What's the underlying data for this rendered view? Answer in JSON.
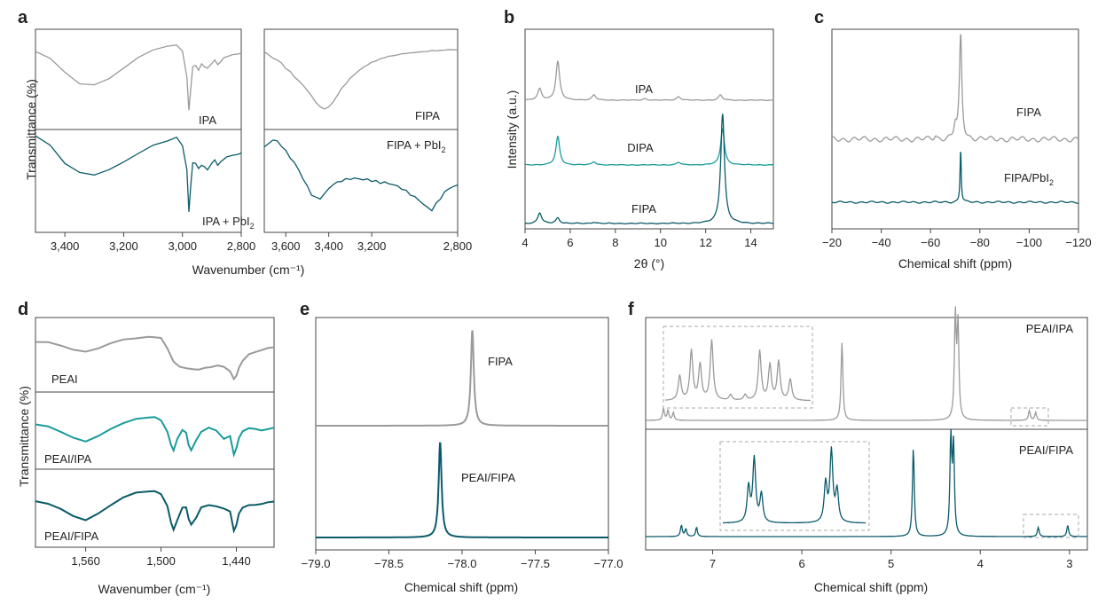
{
  "colors": {
    "gray": "#9a9a9a",
    "teal_light": "#1a9b9b",
    "teal_dark": "#0b5a6a",
    "axis": "#555555",
    "frame": "#444444"
  },
  "panel_labels": [
    "a",
    "b",
    "c",
    "d",
    "e",
    "f"
  ],
  "chart_data": [
    {
      "panel": "a",
      "type": "line",
      "xlabel": "Wavenumber (cm⁻¹)",
      "ylabel": "Transmittance (%)",
      "subplots": [
        {
          "x_ticks": [
            "3,400",
            "3,200",
            "3,000",
            "2,800"
          ],
          "xlim": [
            3500,
            2800
          ],
          "series": [
            {
              "name": "IPA",
              "color": "gray",
              "x": [
                3500,
                3450,
                3400,
                3350,
                3300,
                3250,
                3200,
                3150,
                3100,
                3050,
                3020,
                3000,
                2985,
                2978,
                2972,
                2965,
                2955,
                2945,
                2935,
                2925,
                2915,
                2900,
                2890,
                2880,
                2870,
                2860,
                2850,
                2830,
                2810,
                2800
              ],
              "y": [
                0.8,
                0.72,
                0.55,
                0.42,
                0.4,
                0.48,
                0.6,
                0.73,
                0.82,
                0.86,
                0.88,
                0.8,
                0.5,
                0.1,
                0.35,
                0.62,
                0.63,
                0.58,
                0.65,
                0.62,
                0.6,
                0.66,
                0.7,
                0.64,
                0.68,
                0.72,
                0.74,
                0.76,
                0.77,
                0.78
              ]
            },
            {
              "name": "IPA + PbI₂",
              "color": "teal_dark",
              "x": [
                3500,
                3450,
                3400,
                3350,
                3300,
                3250,
                3200,
                3150,
                3100,
                3050,
                3020,
                3000,
                2985,
                2978,
                2972,
                2965,
                2955,
                2945,
                2935,
                2925,
                2915,
                2900,
                2890,
                2880,
                2870,
                2860,
                2850,
                2830,
                2810,
                2800
              ],
              "y": [
                0.9,
                0.8,
                0.62,
                0.52,
                0.5,
                0.55,
                0.63,
                0.72,
                0.8,
                0.85,
                0.88,
                0.8,
                0.55,
                0.12,
                0.38,
                0.62,
                0.62,
                0.56,
                0.6,
                0.58,
                0.55,
                0.62,
                0.65,
                0.6,
                0.63,
                0.66,
                0.68,
                0.7,
                0.71,
                0.72
              ]
            }
          ]
        },
        {
          "x_ticks": [
            "3,600",
            "3,400",
            "3,200",
            "2,800"
          ],
          "xlim": [
            3700,
            2800
          ],
          "series": [
            {
              "name": "FIPA",
              "color": "gray",
              "x": [
                3700,
                3680,
                3660,
                3640,
                3620,
                3600,
                3580,
                3560,
                3540,
                3520,
                3500,
                3480,
                3460,
                3440,
                3420,
                3400,
                3380,
                3360,
                3340,
                3320,
                3300,
                3280,
                3260,
                3240,
                3220,
                3200,
                3180,
                3160,
                3140,
                3120,
                3100,
                3080,
                3060,
                3040,
                3020,
                3000,
                2980,
                2960,
                2940,
                2920,
                2900,
                2880,
                2860,
                2840,
                2820,
                2800
              ],
              "y": [
                0.8,
                0.76,
                0.72,
                0.7,
                0.66,
                0.6,
                0.56,
                0.5,
                0.45,
                0.4,
                0.34,
                0.27,
                0.2,
                0.14,
                0.12,
                0.14,
                0.2,
                0.28,
                0.36,
                0.42,
                0.48,
                0.53,
                0.57,
                0.61,
                0.64,
                0.67,
                0.69,
                0.71,
                0.73,
                0.74,
                0.75,
                0.76,
                0.77,
                0.78,
                0.78,
                0.79,
                0.79,
                0.8,
                0.8,
                0.81,
                0.81,
                0.81,
                0.82,
                0.82,
                0.82,
                0.82
              ]
            },
            {
              "name": "FIPA + PbI₂",
              "color": "teal_dark",
              "x": [
                3700,
                3680,
                3660,
                3640,
                3620,
                3600,
                3580,
                3560,
                3540,
                3520,
                3500,
                3480,
                3460,
                3440,
                3420,
                3400,
                3380,
                3360,
                3340,
                3320,
                3300,
                3280,
                3260,
                3240,
                3220,
                3200,
                3180,
                3160,
                3140,
                3120,
                3100,
                3080,
                3060,
                3040,
                3020,
                3000,
                2980,
                2960,
                2940,
                2920,
                2900,
                2880,
                2860,
                2840,
                2820,
                2800
              ],
              "y": [
                0.78,
                0.82,
                0.86,
                0.84,
                0.8,
                0.74,
                0.68,
                0.62,
                0.55,
                0.46,
                0.38,
                0.3,
                0.26,
                0.26,
                0.3,
                0.36,
                0.4,
                0.42,
                0.44,
                0.45,
                0.46,
                0.46,
                0.46,
                0.45,
                0.45,
                0.44,
                0.43,
                0.42,
                0.42,
                0.41,
                0.4,
                0.38,
                0.36,
                0.33,
                0.3,
                0.27,
                0.24,
                0.2,
                0.16,
                0.14,
                0.2,
                0.26,
                0.32,
                0.36,
                0.38,
                0.39
              ]
            }
          ]
        }
      ]
    },
    {
      "panel": "b",
      "type": "line",
      "xlabel": "2θ (°)",
      "ylabel": "Intensity (a.u.)",
      "xlim": [
        4,
        15
      ],
      "x_ticks": [
        4,
        6,
        8,
        10,
        12,
        14
      ],
      "series": [
        {
          "name": "IPA",
          "color": "gray",
          "peaks": [
            [
              4.65,
              0.22
            ],
            [
              5.45,
              0.75
            ],
            [
              7.05,
              0.1
            ],
            [
              10.8,
              0.07
            ],
            [
              12.65,
              0.1
            ],
            [
              9.3,
              0.03
            ]
          ]
        },
        {
          "name": "DIPA",
          "color": "teal_light",
          "peaks": [
            [
              5.45,
              0.55
            ],
            [
              7.05,
              0.06
            ],
            [
              10.8,
              0.05
            ],
            [
              12.75,
              0.7
            ]
          ]
        },
        {
          "name": "FIPA",
          "color": "teal_dark",
          "peaks": [
            [
              4.65,
              0.15
            ],
            [
              5.45,
              0.08
            ],
            [
              7.05,
              0.02
            ],
            [
              12.75,
              1.55
            ]
          ]
        }
      ]
    },
    {
      "panel": "c",
      "type": "line",
      "xlabel": "Chemical shift (ppm)",
      "xlim": [
        -20,
        -120
      ],
      "x_ticks": [
        -20,
        -40,
        -60,
        -80,
        -100,
        -120
      ],
      "series": [
        {
          "name": "FIPA",
          "color": "gray",
          "peaks": [
            [
              -72.2,
              1.45
            ],
            [
              -70,
              0.18
            ],
            [
              -62,
              0.05
            ]
          ]
        },
        {
          "name": "FIPA/PbI₂",
          "color": "teal_dark",
          "peaks": [
            [
              -72.2,
              0.85
            ]
          ]
        }
      ]
    },
    {
      "panel": "d",
      "type": "line",
      "xlabel": "Wavenumber (cm⁻¹)",
      "ylabel": "Transmittance (%)",
      "xlim": [
        1600,
        1410
      ],
      "x_ticks": [
        "1,560",
        "1,500",
        "1,440"
      ],
      "series": [
        {
          "name": "PEAI",
          "color": "gray",
          "x": [
            1600,
            1590,
            1580,
            1570,
            1560,
            1550,
            1540,
            1530,
            1520,
            1510,
            1505,
            1500,
            1495,
            1490,
            1485,
            1480,
            1475,
            1470,
            1465,
            1460,
            1455,
            1450,
            1445,
            1442,
            1440,
            1438,
            1435,
            1430,
            1425,
            1420,
            1415,
            1410
          ],
          "y": [
            0.72,
            0.72,
            0.66,
            0.6,
            0.56,
            0.62,
            0.7,
            0.76,
            0.78,
            0.8,
            0.8,
            0.78,
            0.62,
            0.4,
            0.32,
            0.3,
            0.28,
            0.28,
            0.3,
            0.32,
            0.34,
            0.32,
            0.25,
            0.12,
            0.18,
            0.3,
            0.42,
            0.52,
            0.56,
            0.59,
            0.62,
            0.64
          ]
        },
        {
          "name": "PEAI/IPA",
          "color": "teal_light",
          "x": [
            1600,
            1590,
            1580,
            1570,
            1560,
            1550,
            1540,
            1530,
            1520,
            1510,
            1505,
            1500,
            1495,
            1492,
            1490,
            1487,
            1483,
            1480,
            1478,
            1476,
            1472,
            1468,
            1462,
            1456,
            1450,
            1445,
            1442,
            1440,
            1438,
            1435,
            1430,
            1425,
            1420,
            1415,
            1410
          ],
          "y": [
            0.64,
            0.6,
            0.52,
            0.42,
            0.36,
            0.45,
            0.56,
            0.66,
            0.72,
            0.75,
            0.75,
            0.7,
            0.52,
            0.3,
            0.22,
            0.4,
            0.55,
            0.5,
            0.3,
            0.22,
            0.38,
            0.52,
            0.58,
            0.54,
            0.4,
            0.45,
            0.15,
            0.25,
            0.42,
            0.52,
            0.58,
            0.56,
            0.54,
            0.56,
            0.58
          ]
        },
        {
          "name": "PEAI/FIPA",
          "color": "teal_dark",
          "x": [
            1600,
            1590,
            1580,
            1570,
            1560,
            1550,
            1540,
            1530,
            1520,
            1510,
            1505,
            1500,
            1495,
            1492,
            1490,
            1487,
            1483,
            1480,
            1478,
            1476,
            1472,
            1468,
            1462,
            1456,
            1450,
            1445,
            1442,
            1440,
            1438,
            1435,
            1430,
            1425,
            1420,
            1415,
            1410
          ],
          "y": [
            0.64,
            0.6,
            0.52,
            0.4,
            0.34,
            0.44,
            0.58,
            0.7,
            0.78,
            0.8,
            0.8,
            0.76,
            0.56,
            0.3,
            0.18,
            0.34,
            0.54,
            0.54,
            0.36,
            0.26,
            0.38,
            0.54,
            0.58,
            0.56,
            0.52,
            0.48,
            0.16,
            0.26,
            0.44,
            0.54,
            0.58,
            0.58,
            0.6,
            0.62,
            0.64
          ]
        }
      ]
    },
    {
      "panel": "e",
      "type": "line",
      "xlabel": "Chemical shift (ppm)",
      "xlim": [
        -79.0,
        -77.0
      ],
      "x_ticks": [
        "−79.0",
        "−78.5",
        "−78.0",
        "−77.5",
        "−77.0"
      ],
      "series": [
        {
          "name": "FIPA",
          "color": "gray",
          "peaks": [
            [
              -77.93,
              1.0
            ]
          ]
        },
        {
          "name": "PEAI/FIPA",
          "color": "teal_dark",
          "peaks": [
            [
              -78.15,
              0.98
            ]
          ]
        }
      ]
    },
    {
      "panel": "f",
      "type": "line",
      "xlabel": "Chemical shift (ppm)",
      "xlim": [
        7.75,
        2.8
      ],
      "x_ticks": [
        7,
        6,
        5,
        4,
        3
      ],
      "series": [
        {
          "name": "PEAI/IPA",
          "color": "gray",
          "peaks": [
            [
              7.55,
              0.12
            ],
            [
              7.5,
              0.1
            ],
            [
              7.44,
              0.08
            ],
            [
              5.55,
              0.8
            ],
            [
              4.28,
              1.05
            ],
            [
              4.25,
              0.95
            ],
            [
              3.45,
              0.1
            ],
            [
              3.38,
              0.08
            ]
          ]
        },
        {
          "name": "PEAI/FIPA",
          "color": "teal_dark",
          "peaks": [
            [
              7.35,
              0.12
            ],
            [
              7.3,
              0.08
            ],
            [
              7.18,
              0.1
            ],
            [
              4.75,
              0.95
            ],
            [
              4.33,
              1.05
            ],
            [
              4.3,
              0.95
            ],
            [
              3.35,
              0.1
            ],
            [
              3.02,
              0.12
            ]
          ]
        }
      ]
    }
  ]
}
